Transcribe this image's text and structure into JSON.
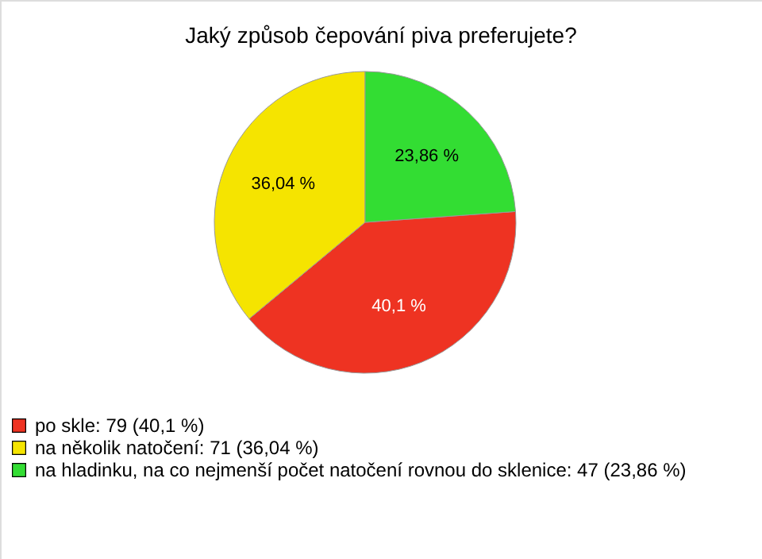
{
  "chart_data": {
    "type": "pie",
    "title": "Jaký způsob čepování piva preferujete?",
    "categories": [
      "po skle: 79 (40,1 %)",
      "na několik natočení: 71 (36,04 %)",
      "na hladinku, na co nejmenší počet natočení rovnou do sklenice: 47 (23,86 %)"
    ],
    "values": [
      40.1,
      36.04,
      23.86
    ],
    "value_labels": [
      "40,1 %",
      "36,04 %",
      "23,86 %"
    ],
    "colors": [
      "#ee3322",
      "#f5e400",
      "#33dd33"
    ],
    "legend": "bottom left"
  }
}
